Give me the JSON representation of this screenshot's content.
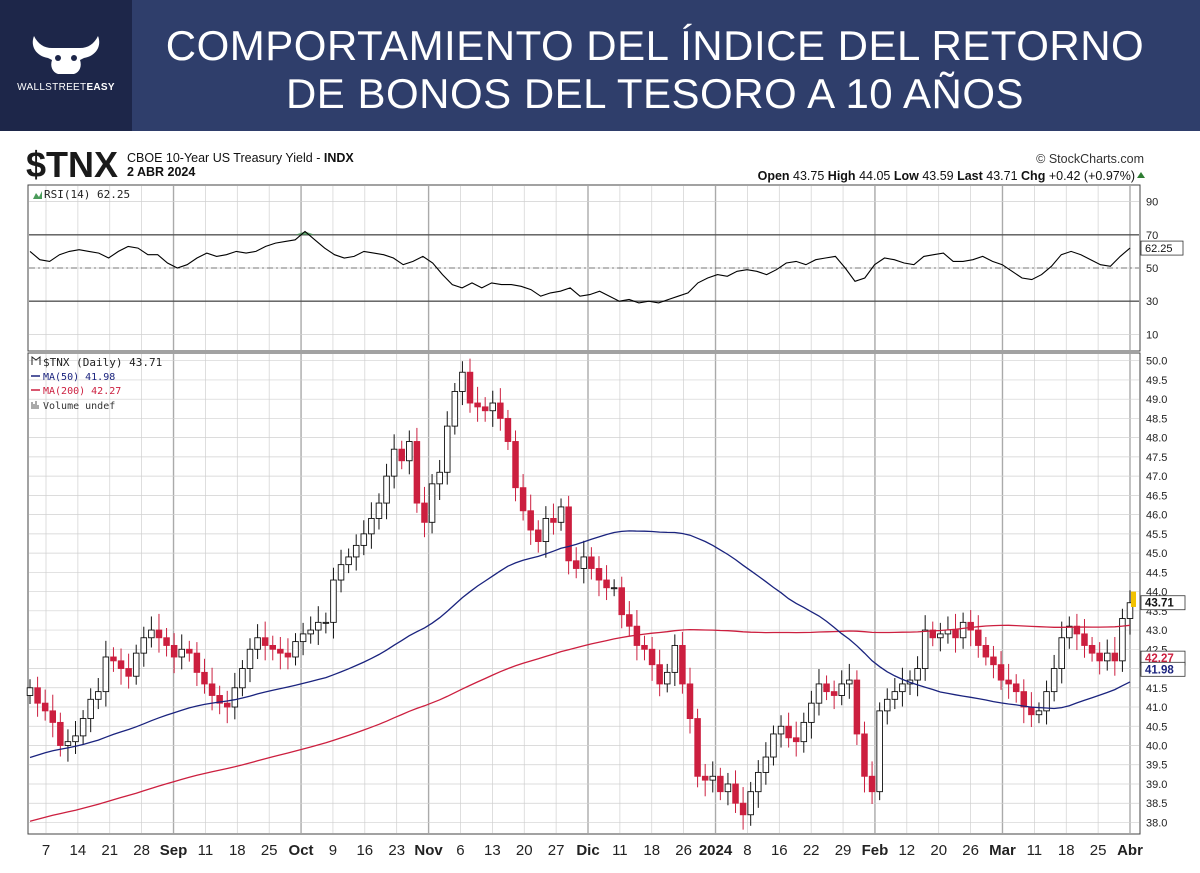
{
  "banner": {
    "title_line1": "COMPORTAMIENTO DEL ÍNDICE DEL RETORNO",
    "title_line2": "DE BONOS DEL TESORO A 10 AÑOS",
    "logo_text_a": "WALLSTREET",
    "logo_text_b": "EASY"
  },
  "header": {
    "symbol": "$TNX",
    "name": "CBOE 10-Year US Treasury Yield - ",
    "exchange": "INDX",
    "date": "2 ABR 2024",
    "source": "© StockCharts.com",
    "ohlc": [
      {
        "label": "Open",
        "value": "43.75"
      },
      {
        "label": "High",
        "value": "44.05"
      },
      {
        "label": "Low",
        "value": "43.59"
      },
      {
        "label": "Last",
        "value": "43.71"
      },
      {
        "label": "Chg",
        "value": "+0.42 (+0.97%)"
      }
    ]
  },
  "colors": {
    "up": "#ffffff",
    "down": "#cc1f3f",
    "ma50": "#1a237e",
    "ma200": "#cc1f3f",
    "rsi": "#000000",
    "rsi_fill": "#4a9b5a",
    "grid": "#d0d0d0"
  },
  "chart_data": {
    "type": "candlestick",
    "x_tick_labels": [
      "7",
      "14",
      "21",
      "28",
      "Sep",
      "11",
      "18",
      "25",
      "Oct",
      "9",
      "16",
      "23",
      "Nov",
      "6",
      "13",
      "20",
      "27",
      "Dic",
      "11",
      "18",
      "26",
      "2024",
      "8",
      "16",
      "22",
      "29",
      "Feb",
      "12",
      "20",
      "26",
      "Mar",
      "11",
      "18",
      "25",
      "Abr"
    ],
    "rsi": {
      "label": "RSI(14) 62.25",
      "last": "62.25",
      "ylim": [
        0,
        100
      ],
      "ticks": [
        "10",
        "30",
        "50",
        "70",
        "90"
      ],
      "levels": [
        30,
        50,
        70
      ],
      "values": [
        60,
        55,
        54,
        58,
        60,
        61,
        60,
        59,
        56,
        60,
        63,
        62,
        58,
        58,
        53,
        50,
        52,
        56,
        59,
        57,
        58,
        60,
        59,
        60,
        63,
        65,
        66,
        67,
        72,
        67,
        62,
        58,
        56,
        57,
        60,
        59,
        58,
        56,
        52,
        54,
        57,
        53,
        46,
        40,
        38,
        41,
        38,
        41,
        40,
        40,
        39,
        37,
        33,
        35,
        36,
        38,
        33,
        34,
        36,
        33,
        30,
        31,
        29,
        30,
        29,
        31,
        33,
        35,
        41,
        44,
        46,
        45,
        48,
        49,
        48,
        46,
        49,
        53,
        54,
        52,
        55,
        56,
        57,
        50,
        42,
        44,
        52,
        56,
        55,
        53,
        52,
        57,
        58,
        59,
        54,
        54,
        55,
        57,
        54,
        52,
        48,
        44,
        43,
        46,
        51,
        58,
        60,
        58,
        55,
        52,
        51,
        57,
        62
      ]
    },
    "price": {
      "label": "$TNX (Daily) 43.71",
      "last": "43.71",
      "ylim": [
        37.7,
        50.2
      ],
      "ticks": [
        "38.0",
        "38.5",
        "39.0",
        "39.5",
        "40.0",
        "40.5",
        "41.0",
        "41.5",
        "42.0",
        "42.5",
        "43.0",
        "43.5",
        "44.0",
        "44.5",
        "45.0",
        "45.5",
        "46.0",
        "46.5",
        "47.0",
        "47.5",
        "48.0",
        "48.5",
        "49.0",
        "49.5",
        "50.0"
      ],
      "ma50": {
        "label": "MA(50) 41.98",
        "last": "41.98"
      },
      "ma200": {
        "label": "MA(200) 42.27",
        "last": "42.27"
      },
      "volume": {
        "label": "Volume undef"
      },
      "close": [
        41.5,
        41.1,
        40.9,
        40.6,
        40.0,
        40.1,
        40.25,
        40.7,
        41.2,
        41.4,
        42.3,
        42.2,
        42.0,
        41.8,
        42.4,
        42.8,
        43.0,
        42.8,
        42.6,
        42.3,
        42.5,
        42.4,
        41.9,
        41.6,
        41.3,
        41.1,
        41.0,
        41.5,
        42.0,
        42.5,
        42.8,
        42.6,
        42.5,
        42.4,
        42.3,
        42.7,
        42.9,
        43.0,
        43.2,
        43.2,
        44.3,
        44.7,
        44.9,
        45.2,
        45.5,
        45.9,
        46.3,
        47.0,
        47.7,
        47.4,
        47.9,
        46.3,
        45.8,
        46.8,
        47.1,
        48.3,
        49.2,
        49.7,
        48.9,
        48.8,
        48.7,
        48.9,
        48.5,
        47.9,
        46.7,
        46.1,
        45.6,
        45.3,
        45.9,
        45.8,
        46.2,
        44.8,
        44.6,
        44.9,
        44.6,
        44.3,
        44.1,
        44.1,
        43.4,
        43.1,
        42.6,
        42.5,
        42.1,
        41.6,
        41.9,
        42.6,
        41.6,
        40.7,
        39.2,
        39.1,
        39.2,
        38.8,
        39.0,
        38.5,
        38.2,
        38.8,
        39.3,
        39.7,
        40.3,
        40.5,
        40.2,
        40.1,
        40.6,
        41.1,
        41.6,
        41.4,
        41.3,
        41.6,
        41.7,
        40.3,
        39.2,
        38.8,
        40.9,
        41.2,
        41.4,
        41.6,
        41.7,
        42.0,
        43.0,
        42.8,
        42.9,
        43.0,
        42.8,
        43.2,
        43.0,
        42.6,
        42.3,
        42.1,
        41.7,
        41.6,
        41.4,
        41.0,
        40.8,
        40.9,
        41.4,
        42.0,
        42.8,
        43.1,
        42.9,
        42.6,
        42.4,
        42.2,
        42.4,
        42.2,
        43.3,
        43.71
      ]
    }
  }
}
